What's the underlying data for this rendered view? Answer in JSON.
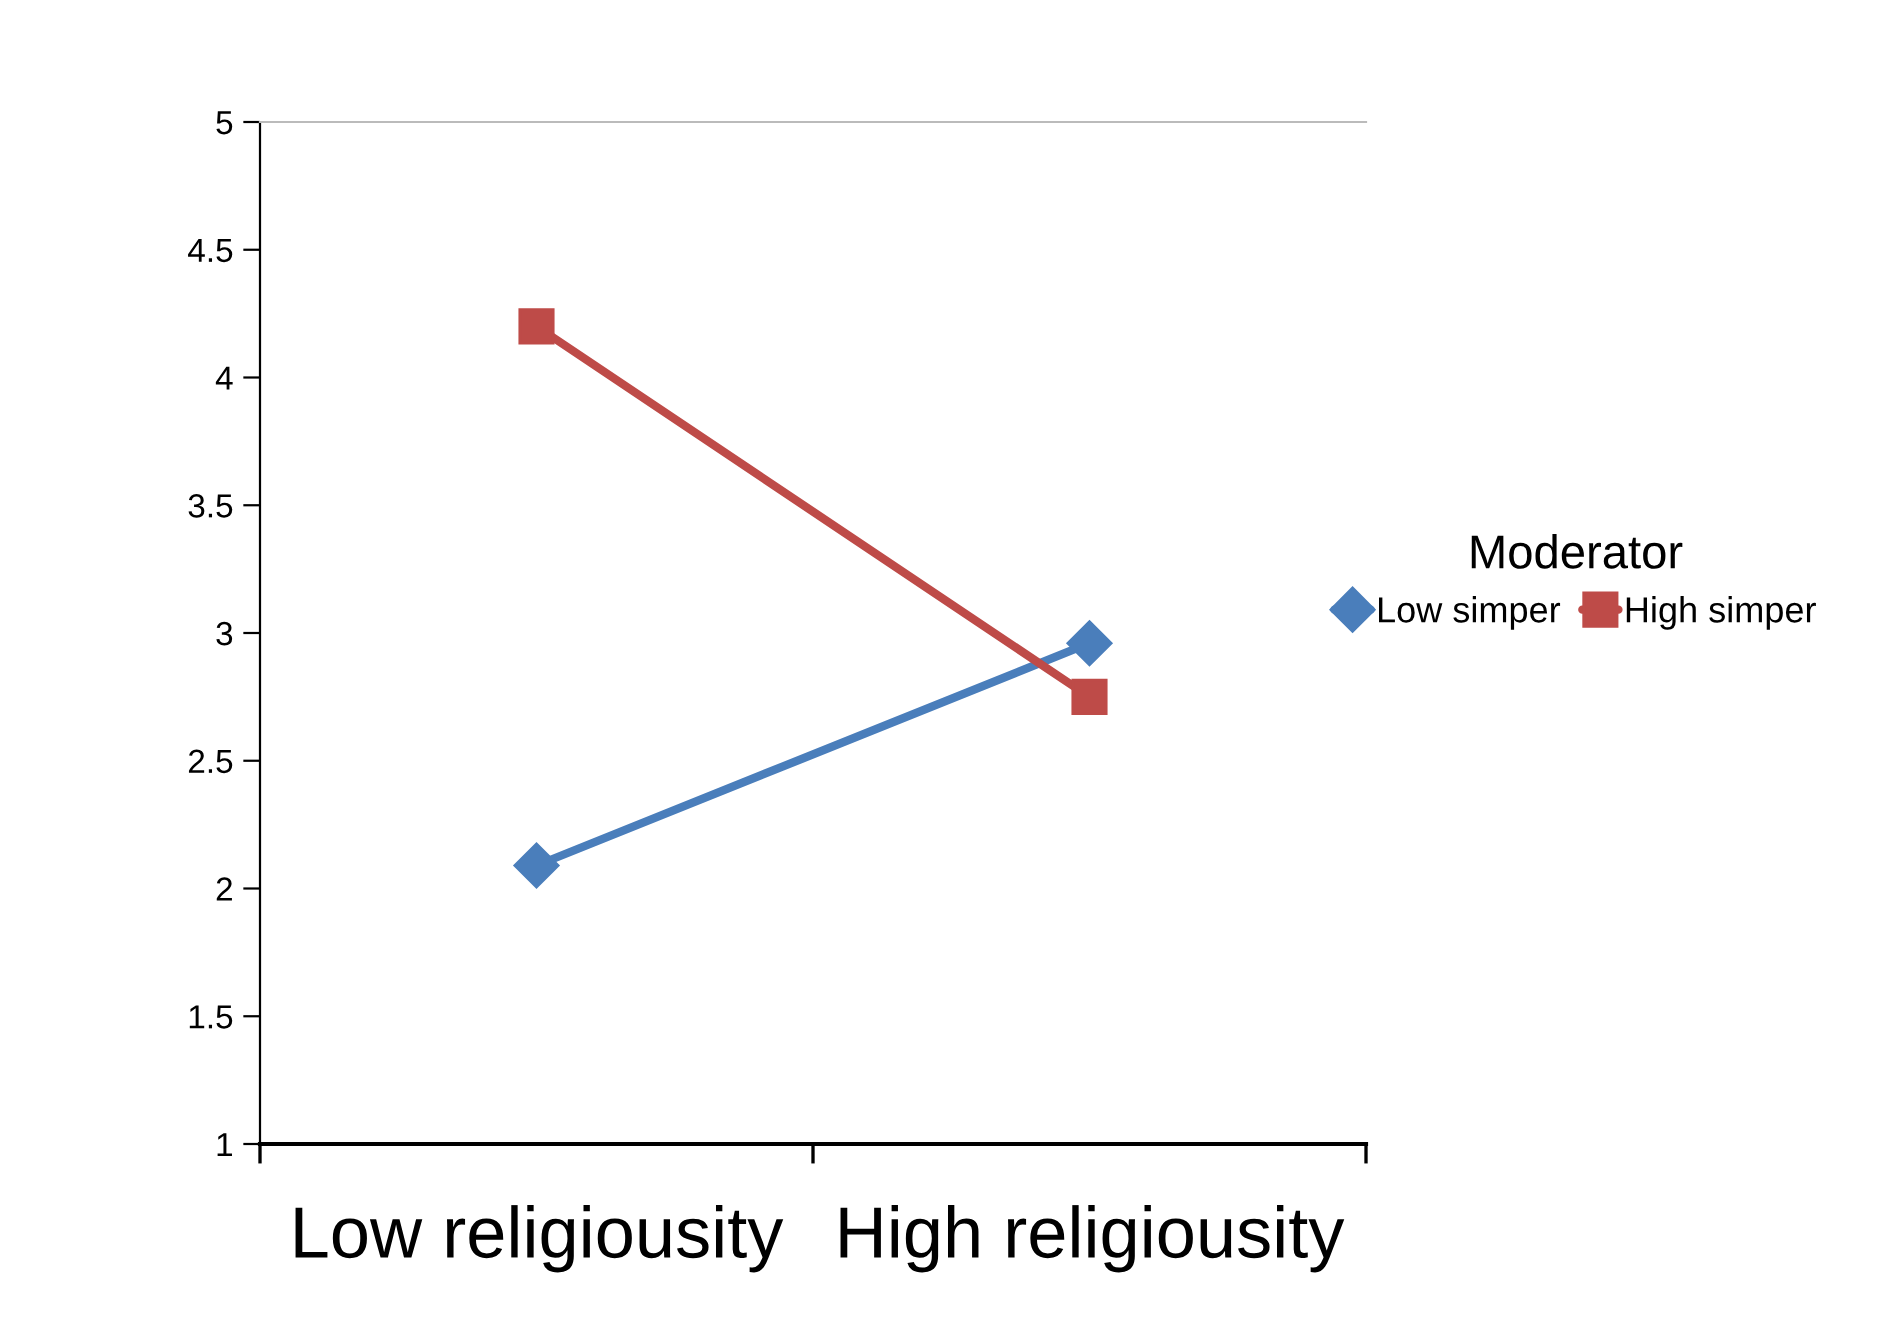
{
  "chart_data": {
    "type": "line",
    "categories": [
      "Low religiousity",
      "High religiousity"
    ],
    "series": [
      {
        "name": "Low simper",
        "color": "#4a7ebb",
        "values": [
          2.09,
          2.96
        ],
        "marker": "diamond"
      },
      {
        "name": "High simper",
        "color": "#be4b48",
        "values": [
          4.2,
          2.75
        ],
        "marker": "square"
      }
    ],
    "ylim": [
      1,
      5
    ],
    "yticks": [
      1,
      1.5,
      2,
      2.5,
      3,
      3.5,
      4,
      4.5,
      5
    ],
    "legend": "right",
    "legend_title": "Moderator",
    "grid": false,
    "line_style": "solid"
  }
}
